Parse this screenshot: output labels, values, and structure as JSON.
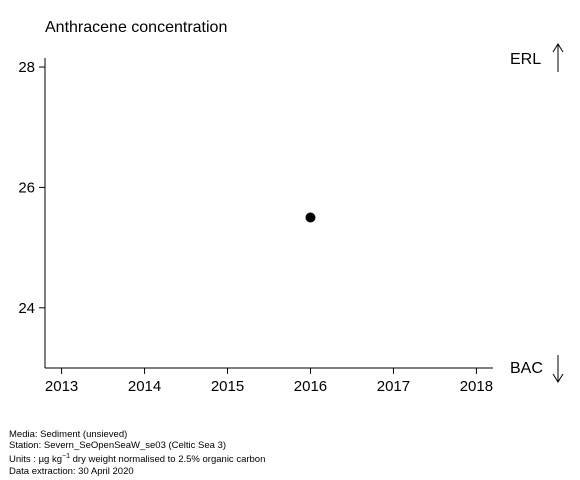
{
  "chart_data": {
    "type": "scatter",
    "title": "Anthracene concentration",
    "xlabel": "",
    "ylabel": "",
    "xlim": [
      2012.8,
      2018.2
    ],
    "ylim": [
      23,
      28.15
    ],
    "xticks": [
      2013,
      2014,
      2015,
      2016,
      2017,
      2018
    ],
    "yticks": [
      24,
      26,
      28
    ],
    "points": [
      {
        "x": 2016,
        "y": 25.5
      }
    ],
    "reference_lines": [
      {
        "label": "ERL",
        "arrow": "up"
      },
      {
        "label": "BAC",
        "arrow": "down"
      }
    ],
    "grid": false,
    "point_color": "#000000"
  },
  "footer": {
    "media": "Media: Sediment (unsieved)",
    "station": "Station: Severn_SeOpenSeaW_se03 (Celtic Sea 3)",
    "units_prefix": "Units : ",
    "units_unit": "µg kg",
    "units_exp": "−1",
    "units_suffix": " dry weight normalised to 2.5% organic carbon",
    "extraction": "Data extraction: 30 April 2020"
  }
}
